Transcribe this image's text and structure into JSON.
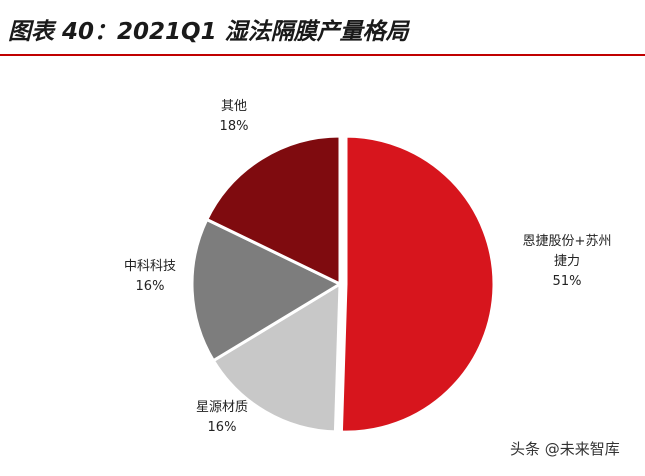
{
  "header": {
    "title": "图表 40：2021Q1 湿法隔膜产量格局",
    "rule_color": "#c00000"
  },
  "chart_data": {
    "type": "pie",
    "title": "",
    "slices": [
      {
        "label": "恩捷股份+苏州捷力",
        "label_lines": [
          "恩捷股份+苏州",
          "捷力"
        ],
        "value": 51,
        "display": "51%",
        "color": "#d7151d"
      },
      {
        "label": "星源材质",
        "label_lines": [
          "星源材质"
        ],
        "value": 16,
        "display": "16%",
        "color": "#c8c8c8"
      },
      {
        "label": "中科科技",
        "label_lines": [
          "中科科技"
        ],
        "value": 16,
        "display": "16%",
        "color": "#7d7d7d"
      },
      {
        "label": "其他",
        "label_lines": [
          "其他"
        ],
        "value": 18,
        "display": "18%",
        "color": "#7f0b0f"
      }
    ],
    "start_angle_deg": 0,
    "direction": "clockwise"
  },
  "watermark": {
    "text": "头条 @未来智库"
  }
}
